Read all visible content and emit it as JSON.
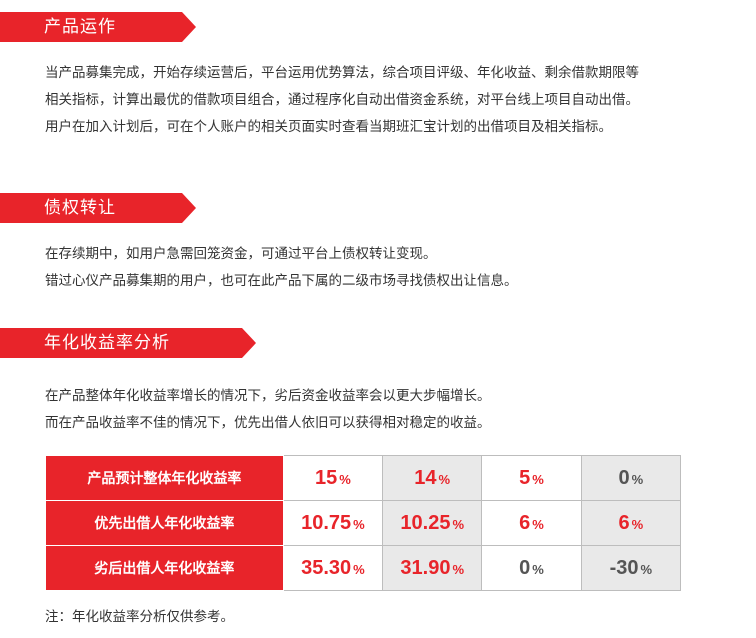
{
  "sections": {
    "operation": {
      "title": "产品运作",
      "lines": [
        "当产品募集完成，开始存续运营后，平台运用优势算法，综合项目评级、年化收益、剩余借款期限等",
        "相关指标，计算出最优的借款项目组合，通过程序化自动出借资金系统，对平台线上项目自动出借。",
        "用户在加入计划后，可在个人账户的相关页面实时查看当期班汇宝计划的出借项目及相关指标。"
      ]
    },
    "transfer": {
      "title": "债权转让",
      "lines": [
        "在存续期中，如用户急需回笼资金，可通过平台上债权转让变现。",
        "错过心仪产品募集期的用户，也可在此产品下属的二级市场寻找债权出让信息。"
      ]
    },
    "analysis": {
      "title": "年化收益率分析",
      "lines": [
        "在产品整体年化收益率增长的情况下，劣后资金收益率会以更大步幅增长。",
        "而在产品收益率不佳的情况下，优先出借人依旧可以获得相对稳定的收益。"
      ]
    }
  },
  "table": {
    "rows": [
      {
        "label": "产品预计整体年化收益率",
        "values": [
          {
            "num": "15",
            "unit": "%",
            "tone": "red"
          },
          {
            "num": "14",
            "unit": "%",
            "tone": "red"
          },
          {
            "num": "5",
            "unit": "%",
            "tone": "red"
          },
          {
            "num": "0",
            "unit": "%",
            "tone": "dark"
          }
        ]
      },
      {
        "label": "优先出借人年化收益率",
        "values": [
          {
            "num": "10.75",
            "unit": "%",
            "tone": "red"
          },
          {
            "num": "10.25",
            "unit": "%",
            "tone": "red"
          },
          {
            "num": "6",
            "unit": "%",
            "tone": "red"
          },
          {
            "num": "6",
            "unit": "%",
            "tone": "red"
          }
        ]
      },
      {
        "label": "劣后出借人年化收益率",
        "values": [
          {
            "num": "35.30",
            "unit": "%",
            "tone": "red"
          },
          {
            "num": "31.90",
            "unit": "%",
            "tone": "red"
          },
          {
            "num": "0",
            "unit": "%",
            "tone": "dark"
          },
          {
            "num": "-30",
            "unit": "%",
            "tone": "dark"
          }
        ]
      }
    ]
  },
  "note": "注：年化收益率分析仅供参考。",
  "colors": {
    "accent": "#e8242a",
    "text": "#333333",
    "gray_cell": "#e9e9e9",
    "dark_value": "#555555"
  }
}
